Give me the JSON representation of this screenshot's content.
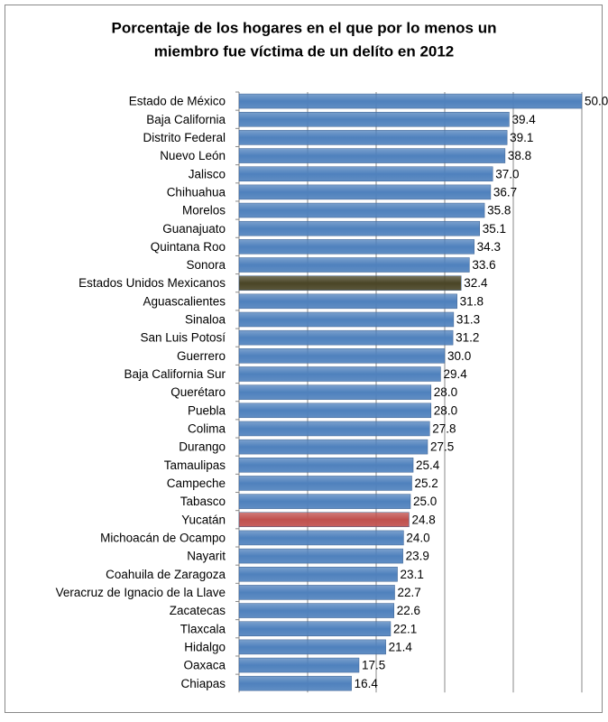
{
  "chart_data": {
    "type": "bar",
    "orientation": "horizontal",
    "title": [
      "Porcentaje de los hogares en el que por lo menos un",
      "miembro fue víctima de un delíto en 2012"
    ],
    "categories": [
      "Estado de México",
      "Baja California",
      "Distrito Federal",
      "Nuevo León",
      "Jalisco",
      "Chihuahua",
      "Morelos",
      "Guanajuato",
      "Quintana Roo",
      "Sonora",
      "Estados Unidos Mexicanos",
      "Aguascalientes",
      "Sinaloa",
      "San Luis Potosí",
      "Guerrero",
      "Baja California Sur",
      "Querétaro",
      "Puebla",
      "Colima",
      "Durango",
      "Tamaulipas",
      "Campeche",
      "Tabasco",
      "Yucatán",
      "Michoacán de Ocampo",
      "Nayarit",
      "Coahuila de Zaragoza",
      "Veracruz de Ignacio de la Llave",
      "Zacatecas",
      "Tlaxcala",
      "Hidalgo",
      "Oaxaca",
      "Chiapas"
    ],
    "values": [
      50.0,
      39.4,
      39.1,
      38.8,
      37.0,
      36.7,
      35.8,
      35.1,
      34.3,
      33.6,
      32.4,
      31.8,
      31.3,
      31.2,
      30.0,
      29.4,
      28.0,
      28.0,
      27.8,
      27.5,
      25.4,
      25.2,
      25.0,
      24.8,
      24.0,
      23.9,
      23.1,
      22.7,
      22.6,
      22.1,
      21.4,
      17.5,
      16.4
    ],
    "value_labels": [
      "50.0",
      "39.4",
      "39.1",
      "38.8",
      "37.0",
      "36.7",
      "35.8",
      "35.1",
      "34.3",
      "33.6",
      "32.4",
      "31.8",
      "31.3",
      "31.2",
      "30.0",
      "29.4",
      "28.0",
      "28.0",
      "27.8",
      "27.5",
      "25.4",
      "25.2",
      "25.0",
      "24.8",
      "24.0",
      "23.9",
      "23.1",
      "22.7",
      "22.6",
      "22.1",
      "21.4",
      "17.5",
      "16.4"
    ],
    "colors": [
      "#4f81bd",
      "#4f81bd",
      "#4f81bd",
      "#4f81bd",
      "#4f81bd",
      "#4f81bd",
      "#4f81bd",
      "#4f81bd",
      "#4f81bd",
      "#4f81bd",
      "#4a4526",
      "#4f81bd",
      "#4f81bd",
      "#4f81bd",
      "#4f81bd",
      "#4f81bd",
      "#4f81bd",
      "#4f81bd",
      "#4f81bd",
      "#4f81bd",
      "#4f81bd",
      "#4f81bd",
      "#4f81bd",
      "#c0504d",
      "#4f81bd",
      "#4f81bd",
      "#4f81bd",
      "#4f81bd",
      "#4f81bd",
      "#4f81bd",
      "#4f81bd",
      "#4f81bd",
      "#4f81bd"
    ],
    "xlim": [
      0,
      50
    ],
    "xticks": [
      0,
      10,
      20,
      30,
      40,
      50
    ],
    "grid": true
  }
}
